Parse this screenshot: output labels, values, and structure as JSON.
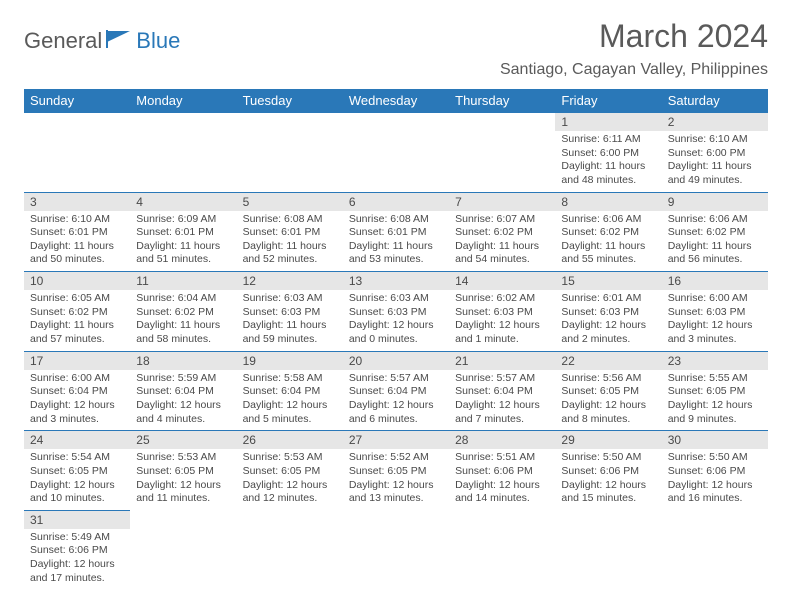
{
  "logo": {
    "text1": "General",
    "text2": "Blue"
  },
  "title": "March 2024",
  "location": "Santiago, Cagayan Valley, Philippines",
  "colors": {
    "header_bg": "#2a78b8",
    "header_fg": "#ffffff",
    "daynum_bg": "#e6e6e6",
    "text": "#4a4a4a",
    "page_bg": "#ffffff"
  },
  "weekdays": [
    "Sunday",
    "Monday",
    "Tuesday",
    "Wednesday",
    "Thursday",
    "Friday",
    "Saturday"
  ],
  "layout": {
    "columns": 7,
    "rows": 6,
    "first_weekday_index": 5,
    "days_in_month": 31
  },
  "days": [
    {
      "n": 1,
      "sunrise": "6:11 AM",
      "sunset": "6:00 PM",
      "daylight": "11 hours and 48 minutes."
    },
    {
      "n": 2,
      "sunrise": "6:10 AM",
      "sunset": "6:00 PM",
      "daylight": "11 hours and 49 minutes."
    },
    {
      "n": 3,
      "sunrise": "6:10 AM",
      "sunset": "6:01 PM",
      "daylight": "11 hours and 50 minutes."
    },
    {
      "n": 4,
      "sunrise": "6:09 AM",
      "sunset": "6:01 PM",
      "daylight": "11 hours and 51 minutes."
    },
    {
      "n": 5,
      "sunrise": "6:08 AM",
      "sunset": "6:01 PM",
      "daylight": "11 hours and 52 minutes."
    },
    {
      "n": 6,
      "sunrise": "6:08 AM",
      "sunset": "6:01 PM",
      "daylight": "11 hours and 53 minutes."
    },
    {
      "n": 7,
      "sunrise": "6:07 AM",
      "sunset": "6:02 PM",
      "daylight": "11 hours and 54 minutes."
    },
    {
      "n": 8,
      "sunrise": "6:06 AM",
      "sunset": "6:02 PM",
      "daylight": "11 hours and 55 minutes."
    },
    {
      "n": 9,
      "sunrise": "6:06 AM",
      "sunset": "6:02 PM",
      "daylight": "11 hours and 56 minutes."
    },
    {
      "n": 10,
      "sunrise": "6:05 AM",
      "sunset": "6:02 PM",
      "daylight": "11 hours and 57 minutes."
    },
    {
      "n": 11,
      "sunrise": "6:04 AM",
      "sunset": "6:02 PM",
      "daylight": "11 hours and 58 minutes."
    },
    {
      "n": 12,
      "sunrise": "6:03 AM",
      "sunset": "6:03 PM",
      "daylight": "11 hours and 59 minutes."
    },
    {
      "n": 13,
      "sunrise": "6:03 AM",
      "sunset": "6:03 PM",
      "daylight": "12 hours and 0 minutes."
    },
    {
      "n": 14,
      "sunrise": "6:02 AM",
      "sunset": "6:03 PM",
      "daylight": "12 hours and 1 minute."
    },
    {
      "n": 15,
      "sunrise": "6:01 AM",
      "sunset": "6:03 PM",
      "daylight": "12 hours and 2 minutes."
    },
    {
      "n": 16,
      "sunrise": "6:00 AM",
      "sunset": "6:03 PM",
      "daylight": "12 hours and 3 minutes."
    },
    {
      "n": 17,
      "sunrise": "6:00 AM",
      "sunset": "6:04 PM",
      "daylight": "12 hours and 3 minutes."
    },
    {
      "n": 18,
      "sunrise": "5:59 AM",
      "sunset": "6:04 PM",
      "daylight": "12 hours and 4 minutes."
    },
    {
      "n": 19,
      "sunrise": "5:58 AM",
      "sunset": "6:04 PM",
      "daylight": "12 hours and 5 minutes."
    },
    {
      "n": 20,
      "sunrise": "5:57 AM",
      "sunset": "6:04 PM",
      "daylight": "12 hours and 6 minutes."
    },
    {
      "n": 21,
      "sunrise": "5:57 AM",
      "sunset": "6:04 PM",
      "daylight": "12 hours and 7 minutes."
    },
    {
      "n": 22,
      "sunrise": "5:56 AM",
      "sunset": "6:05 PM",
      "daylight": "12 hours and 8 minutes."
    },
    {
      "n": 23,
      "sunrise": "5:55 AM",
      "sunset": "6:05 PM",
      "daylight": "12 hours and 9 minutes."
    },
    {
      "n": 24,
      "sunrise": "5:54 AM",
      "sunset": "6:05 PM",
      "daylight": "12 hours and 10 minutes."
    },
    {
      "n": 25,
      "sunrise": "5:53 AM",
      "sunset": "6:05 PM",
      "daylight": "12 hours and 11 minutes."
    },
    {
      "n": 26,
      "sunrise": "5:53 AM",
      "sunset": "6:05 PM",
      "daylight": "12 hours and 12 minutes."
    },
    {
      "n": 27,
      "sunrise": "5:52 AM",
      "sunset": "6:05 PM",
      "daylight": "12 hours and 13 minutes."
    },
    {
      "n": 28,
      "sunrise": "5:51 AM",
      "sunset": "6:06 PM",
      "daylight": "12 hours and 14 minutes."
    },
    {
      "n": 29,
      "sunrise": "5:50 AM",
      "sunset": "6:06 PM",
      "daylight": "12 hours and 15 minutes."
    },
    {
      "n": 30,
      "sunrise": "5:50 AM",
      "sunset": "6:06 PM",
      "daylight": "12 hours and 16 minutes."
    },
    {
      "n": 31,
      "sunrise": "5:49 AM",
      "sunset": "6:06 PM",
      "daylight": "12 hours and 17 minutes."
    }
  ],
  "labels": {
    "sunrise": "Sunrise:",
    "sunset": "Sunset:",
    "daylight": "Daylight:"
  }
}
